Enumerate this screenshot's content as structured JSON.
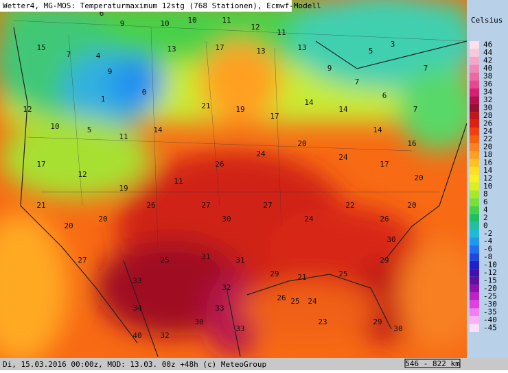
{
  "header": {
    "title": "Wetter4, MG-MOS: Temperaturmaximum 12stg (768 Stationen), Ecmwf-Modell"
  },
  "footer": {
    "info": "Di, 15.03.2016 00:00z, MOD: 13.03. 00z +48h (c) MeteoGroup",
    "scale": "546 - 822 km"
  },
  "legend": {
    "title": "Celsius",
    "values": [
      46,
      44,
      42,
      40,
      38,
      36,
      34,
      32,
      30,
      28,
      26,
      24,
      22,
      20,
      18,
      16,
      14,
      12,
      10,
      8,
      6,
      4,
      2,
      0,
      -2,
      -4,
      -6,
      -8,
      -10,
      -12,
      -15,
      -20,
      -25,
      -30,
      -35,
      -40,
      -45
    ],
    "colors": [
      "#fce0ec",
      "#f8c8dc",
      "#f4a8c8",
      "#f088b4",
      "#ec68a0",
      "#e8488c",
      "#d82070",
      "#b8104c",
      "#981030",
      "#c01818",
      "#e02010",
      "#f04010",
      "#f86010",
      "#ff8020",
      "#ffa020",
      "#ffc020",
      "#ffe020",
      "#f8f020",
      "#d8f020",
      "#a8e828",
      "#78e038",
      "#48d048",
      "#20c060",
      "#20c0a0",
      "#20b8d8",
      "#2098f0",
      "#2070f0",
      "#2048e0",
      "#2020c8",
      "#4010b0",
      "#6010a0",
      "#9010b0",
      "#c020c8",
      "#e040e0",
      "#f080f0",
      "#f8b0f8",
      "#fce0fc"
    ]
  },
  "stations": [
    6,
    9,
    10,
    10,
    11,
    12,
    11,
    5,
    3,
    7,
    15,
    7,
    4,
    9,
    0,
    1,
    13,
    17,
    13,
    13,
    9,
    7,
    6,
    7,
    12,
    10,
    5,
    11,
    14,
    21,
    19,
    17,
    14,
    14,
    14,
    16,
    17,
    12,
    19,
    11,
    26,
    24,
    20,
    24,
    17,
    20,
    21,
    20,
    20,
    26,
    27,
    30,
    27,
    24,
    22,
    26,
    20,
    27,
    33,
    25,
    31,
    31,
    29,
    21,
    25,
    29,
    30,
    34,
    32,
    30,
    33,
    33,
    26,
    25,
    24,
    23,
    29,
    30,
    40,
    32
  ]
}
